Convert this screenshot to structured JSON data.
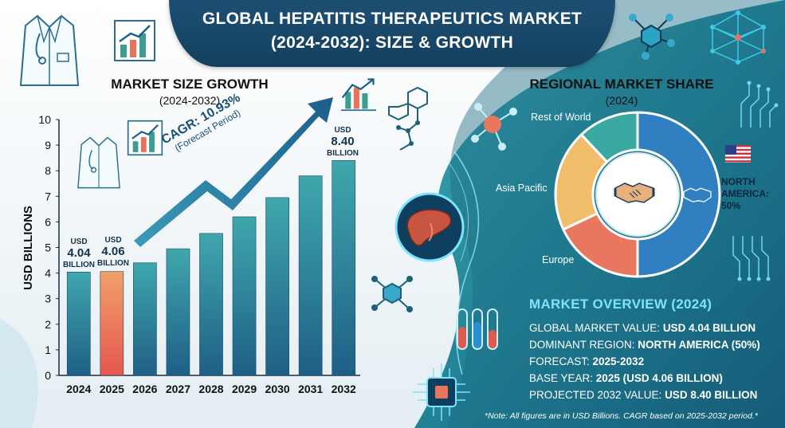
{
  "header": {
    "title_line1": "GLOBAL HEPATITIS THERAPEUTICS MARKET",
    "title_line2": "(2024-2032): SIZE & GROWTH"
  },
  "left_panel": {
    "heading": "MARKET SIZE GROWTH",
    "subheading": "(2024-2032)",
    "cagr_line1": "CAGR: 10.93%",
    "cagr_line2": "(Forecast Period)",
    "callouts": [
      {
        "usd": "USD",
        "value": "4.04",
        "unit": "BILLION"
      },
      {
        "usd": "USD",
        "value": "4.06",
        "unit": "BILLION"
      },
      {
        "usd": "USD",
        "value": "8.40",
        "unit": "BILLION"
      }
    ]
  },
  "right_panel": {
    "heading": "REGIONAL MARKET SHARE",
    "subheading": "(2024)",
    "na_label_line1": "NORTH",
    "na_label_line2": "AMERICA:",
    "na_label_line3": "50%"
  },
  "overview": {
    "title": "MARKET OVERVIEW (2024)",
    "line1_label": "GLOBAL MARKET VALUE: ",
    "line1_value": "USD 4.04 BILLION",
    "line2_label": "DOMINANT REGION: ",
    "line2_value": "NORTH AMERICA (50%)",
    "line3_label": "FORECAST: ",
    "line3_value": "2025-2032",
    "line4_label": "BASE YEAR: ",
    "line4_value": "2025 (USD 4.06 BILLION)",
    "line5_label": "PROJECTED 2032 VALUE: ",
    "line5_value": "USD 8.40 BILLION"
  },
  "footnote": "*Note: All figures are in USD Billions. CAGR based on 2025-2032 period.*",
  "colors": {
    "bar": "#2f8f9d",
    "bar_highlight": "#e9735a",
    "navy": "#14405f",
    "na_blue": "#2f7fc1",
    "europe": "#e9775f",
    "asia": "#f0bd6a",
    "row": "#3aa9a1"
  },
  "icons": [
    "doctor-coat-icon",
    "growth-chart-icon",
    "molecule-icon",
    "liver-icon",
    "handshake-icon",
    "us-flag-icon",
    "test-tubes-icon",
    "circuit-chip-icon",
    "network-icon",
    "trend-arrow-icon"
  ],
  "chart_data": [
    {
      "type": "bar",
      "title": "MARKET SIZE GROWTH (2024-2032)",
      "ylabel": "USD BILLIONS",
      "xlabel": "",
      "categories": [
        "2024",
        "2025",
        "2026",
        "2027",
        "2028",
        "2029",
        "2030",
        "2031",
        "2032"
      ],
      "values": [
        4.04,
        4.06,
        4.4,
        4.95,
        5.55,
        6.2,
        6.95,
        7.8,
        8.4
      ],
      "ylim": [
        0,
        10
      ],
      "yticks": [
        "0",
        "1",
        "2",
        "3",
        "4",
        "5",
        "6",
        "7",
        "8",
        "9",
        "10"
      ],
      "highlight_category": "2025",
      "grid": false
    },
    {
      "type": "pie",
      "title": "REGIONAL MARKET SHARE (2024)",
      "labels": [
        "NORTH AMERICA",
        "Europe",
        "Asia Pacific",
        "Rest of World"
      ],
      "values": [
        50,
        18,
        20,
        12
      ],
      "colors": [
        "#2f7fc1",
        "#e9775f",
        "#f0bd6a",
        "#3aa9a1"
      ],
      "donut": true
    }
  ]
}
